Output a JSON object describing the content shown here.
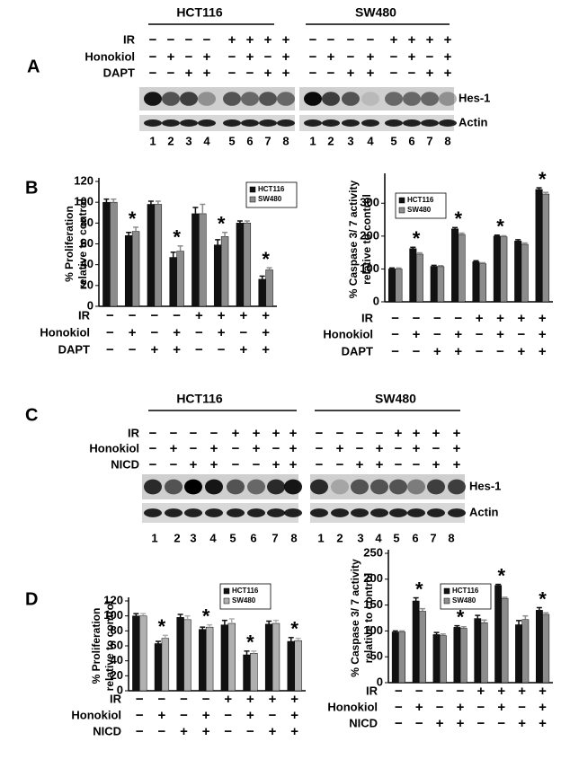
{
  "panel_labels": [
    "A",
    "B",
    "C",
    "D"
  ],
  "blot_a": {
    "groups": [
      "HCT116",
      "SW480"
    ],
    "conditions": [
      {
        "name": "IR",
        "signs": [
          "−",
          "−",
          "−",
          "−",
          "+",
          "+",
          "+",
          "+",
          "−",
          "−",
          "−",
          "−",
          "+",
          "+",
          "+",
          "+"
        ]
      },
      {
        "name": "Honokiol",
        "signs": [
          "−",
          "+",
          "−",
          "+",
          "−",
          "+",
          "−",
          "+",
          "−",
          "+",
          "−",
          "+",
          "−",
          "+",
          "−",
          "+"
        ]
      },
      {
        "name": "DAPT",
        "signs": [
          "−",
          "−",
          "+",
          "+",
          "−",
          "−",
          "+",
          "+",
          "−",
          "−",
          "+",
          "+",
          "−",
          "−",
          "+",
          "+"
        ]
      }
    ],
    "bands": [
      "Hes-1",
      "Actin"
    ],
    "lanes": [
      "1",
      "2",
      "3",
      "4",
      "5",
      "6",
      "7",
      "8",
      "1",
      "2",
      "3",
      "4",
      "5",
      "6",
      "7",
      "8"
    ]
  },
  "blot_c": {
    "groups": [
      "HCT116",
      "SW480"
    ],
    "conditions": [
      {
        "name": "IR",
        "signs": [
          "−",
          "−",
          "−",
          "−",
          "+",
          "+",
          "+",
          "+",
          "−",
          "−",
          "−",
          "−",
          "+",
          "+",
          "+",
          "+"
        ]
      },
      {
        "name": "Honokiol",
        "signs": [
          "−",
          "+",
          "−",
          "+",
          "−",
          "+",
          "−",
          "+",
          "−",
          "+",
          "−",
          "+",
          "−",
          "+",
          "−",
          "+"
        ]
      },
      {
        "name": "NICD",
        "signs": [
          "−",
          "−",
          "+",
          "+",
          "−",
          "−",
          "+",
          "+",
          "−",
          "−",
          "+",
          "+",
          "−",
          "−",
          "+",
          "+"
        ]
      }
    ],
    "bands": [
      "Hes-1",
      "Actin"
    ],
    "lanes": [
      "1",
      "2",
      "3",
      "4",
      "5",
      "6",
      "7",
      "8",
      "1",
      "2",
      "3",
      "4",
      "5",
      "6",
      "7",
      "8"
    ]
  },
  "chart_data": [
    {
      "type": "bar",
      "y_label": [
        "% Proliferation",
        "relative to control"
      ],
      "series": [
        {
          "name": "HCT116",
          "color": "#111111",
          "values": [
            100,
            68,
            98,
            47,
            89,
            59,
            80,
            26
          ],
          "errors": [
            3,
            3,
            3,
            5,
            6,
            5,
            2,
            3
          ]
        },
        {
          "name": "SW480",
          "color": "#8c8c8c",
          "values": [
            100,
            72,
            98,
            53,
            89,
            67,
            80,
            35
          ],
          "errors": [
            3,
            4,
            3,
            5,
            9,
            4,
            2,
            2
          ]
        }
      ],
      "ylim": [
        0,
        120
      ],
      "yticks": [
        0,
        20,
        40,
        60,
        80,
        100,
        120
      ],
      "significant": [
        false,
        true,
        false,
        true,
        false,
        true,
        false,
        true
      ],
      "marker": "*",
      "conditions": [
        {
          "name": "IR",
          "signs": [
            "−",
            "−",
            "−",
            "−",
            "+",
            "+",
            "+",
            "+"
          ]
        },
        {
          "name": "Honokiol",
          "signs": [
            "−",
            "+",
            "−",
            "+",
            "−",
            "+",
            "−",
            "+"
          ]
        },
        {
          "name": "DAPT",
          "signs": [
            "−",
            "−",
            "+",
            "+",
            "−",
            "−",
            "+",
            "+"
          ]
        }
      ]
    },
    {
      "type": "bar",
      "y_label": [
        "% Caspase 3/ 7 activity",
        "relative to control"
      ],
      "series": [
        {
          "name": "HCT116",
          "color": "#111111",
          "values": [
            100,
            162,
            108,
            222,
            122,
            200,
            185,
            342
          ],
          "errors": [
            3,
            4,
            3,
            4,
            3,
            3,
            4,
            5
          ]
        },
        {
          "name": "SW480",
          "color": "#8c8c8c",
          "values": [
            100,
            145,
            107,
            205,
            116,
            198,
            175,
            328
          ],
          "errors": [
            3,
            4,
            3,
            4,
            3,
            3,
            4,
            5
          ]
        }
      ],
      "ylim": [
        0,
        380
      ],
      "yticks": [
        0,
        100,
        200,
        300
      ],
      "significant": [
        false,
        true,
        false,
        true,
        false,
        true,
        false,
        true
      ],
      "marker": "*",
      "conditions": [
        {
          "name": "IR",
          "signs": [
            "−",
            "−",
            "−",
            "−",
            "+",
            "+",
            "+",
            "+"
          ]
        },
        {
          "name": "Honokiol",
          "signs": [
            "−",
            "+",
            "−",
            "+",
            "−",
            "+",
            "−",
            "+"
          ]
        },
        {
          "name": "DAPT",
          "signs": [
            "−",
            "−",
            "+",
            "+",
            "−",
            "−",
            "+",
            "+"
          ]
        }
      ]
    },
    {
      "type": "bar",
      "y_label": [
        "% Proliferation",
        "relative to control"
      ],
      "series": [
        {
          "name": "HCT116",
          "color": "#111111",
          "values": [
            100,
            63,
            98,
            82,
            88,
            48,
            89,
            66
          ],
          "errors": [
            3,
            3,
            4,
            3,
            6,
            5,
            4,
            5
          ]
        },
        {
          "name": "SW480",
          "color": "#b0b0b0",
          "values": [
            100,
            70,
            95,
            85,
            90,
            50,
            90,
            67
          ],
          "errors": [
            3,
            4,
            5,
            3,
            6,
            3,
            4,
            3
          ]
        }
      ],
      "ylim": [
        0,
        120
      ],
      "yticks": [
        0,
        20,
        40,
        60,
        80,
        100,
        120
      ],
      "significant": [
        false,
        true,
        false,
        true,
        false,
        true,
        false,
        true
      ],
      "marker": "*",
      "conditions": [
        {
          "name": "IR",
          "signs": [
            "−",
            "−",
            "−",
            "−",
            "+",
            "+",
            "+",
            "+"
          ]
        },
        {
          "name": "Honokiol",
          "signs": [
            "−",
            "+",
            "−",
            "+",
            "−",
            "+",
            "−",
            "+"
          ]
        },
        {
          "name": "NICD",
          "signs": [
            "−",
            "−",
            "+",
            "+",
            "−",
            "−",
            "+",
            "+"
          ]
        }
      ]
    },
    {
      "type": "bar",
      "y_label": [
        "% Caspase 3/ 7 activity",
        "relative to control"
      ],
      "series": [
        {
          "name": "HCT116",
          "color": "#111111",
          "values": [
            98,
            158,
            93,
            107,
            124,
            188,
            112,
            140
          ],
          "errors": [
            2,
            6,
            4,
            3,
            6,
            2,
            8,
            5
          ]
        },
        {
          "name": "SW480",
          "color": "#8c8c8c",
          "values": [
            98,
            138,
            91,
            105,
            116,
            163,
            122,
            132
          ],
          "errors": [
            2,
            5,
            3,
            3,
            5,
            2,
            7,
            3
          ]
        }
      ],
      "ylim": [
        0,
        250
      ],
      "yticks": [
        0,
        50,
        100,
        150,
        200,
        250
      ],
      "significant": [
        false,
        true,
        false,
        true,
        false,
        true,
        false,
        true
      ],
      "marker": "*",
      "conditions": [
        {
          "name": "IR",
          "signs": [
            "−",
            "−",
            "−",
            "−",
            "+",
            "+",
            "+",
            "+"
          ]
        },
        {
          "name": "Honokiol",
          "signs": [
            "−",
            "+",
            "−",
            "+",
            "−",
            "+",
            "−",
            "+"
          ]
        },
        {
          "name": "NICD",
          "signs": [
            "−",
            "−",
            "+",
            "+",
            "−",
            "−",
            "+",
            "+"
          ]
        }
      ]
    }
  ]
}
